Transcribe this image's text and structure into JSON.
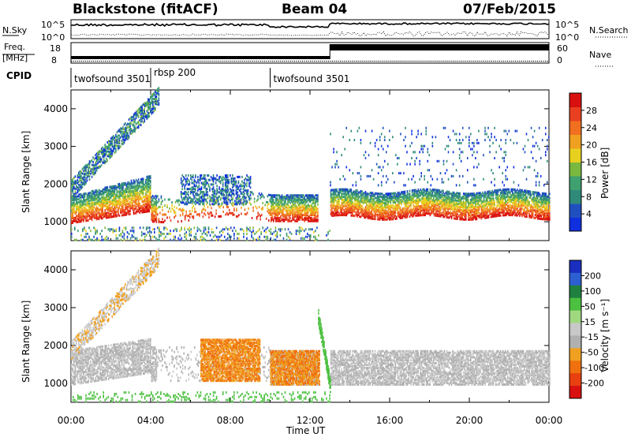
{
  "header": {
    "station": "Blackstone (fitACF)",
    "beam": "Beam 04",
    "date": "07/Feb/2015"
  },
  "labels": {
    "nsky": "N.Sky",
    "nsearch": "N.Search",
    "freq_top": "Freq.",
    "freq_bottom": "[MHz]",
    "nave": "Nave",
    "cpid": "CPID",
    "nsky_ticks": [
      "10^5",
      "10^0"
    ],
    "nsearch_ticks": [
      "10^5",
      "10^0"
    ],
    "freq_ticks": [
      "18",
      "8"
    ],
    "nave_ticks": [
      "60",
      "0"
    ]
  },
  "cpid": [
    {
      "name": "twofsound 3501",
      "start": 0.0
    },
    {
      "name": "rbsp 200",
      "start": 4.0
    },
    {
      "name": "twofsound 3501",
      "start": 10.0
    }
  ],
  "colors": {
    "power_scale": [
      "#1030e0",
      "#2050c0",
      "#2f8a7a",
      "#3fa070",
      "#7ab840",
      "#e8d020",
      "#f0a020",
      "#f07020",
      "#e84020",
      "#d81010"
    ],
    "velocity_scale": [
      "#1a2fc0",
      "#2c5fd0",
      "#1f8040",
      "#4cc040",
      "#a0d880",
      "#c8c8c8",
      "#b0b0b0",
      "#f0a020",
      "#f07010",
      "#e84010",
      "#d81010"
    ]
  },
  "chart_data": [
    {
      "type": "heatmap",
      "name": "power",
      "xlabel": "",
      "ylabel": "Slant Range [km]",
      "xlim": [
        0,
        24
      ],
      "ylim": [
        500,
        4500
      ],
      "yticks": [
        1000,
        2000,
        3000,
        4000
      ],
      "colorbar": {
        "label": "Power [dB]",
        "range": [
          0,
          32
        ],
        "ticks": [
          4,
          8,
          12,
          16,
          20,
          24,
          28
        ]
      },
      "features": [
        {
          "description": "main scatter band",
          "time_range": [
            0,
            24
          ],
          "range_km": [
            1000,
            1800
          ],
          "power_db": [
            14,
            30
          ]
        },
        {
          "description": "rising band",
          "time_range": [
            0,
            4.3
          ],
          "range_km": [
            1900,
            4300
          ],
          "power_db": [
            4,
            16
          ]
        },
        {
          "description": "mid-day patch",
          "time_range": [
            5.5,
            9
          ],
          "range_km": [
            1500,
            2300
          ],
          "power_db": [
            4,
            16
          ]
        }
      ]
    },
    {
      "type": "heatmap",
      "name": "velocity",
      "xlabel": "Time UT",
      "ylabel": "Slant Range [km]",
      "xlim": [
        0,
        24
      ],
      "ylim": [
        500,
        4500
      ],
      "yticks": [
        1000,
        2000,
        3000,
        4000
      ],
      "xticks": [
        "00:00",
        "04:00",
        "08:00",
        "12:00",
        "16:00",
        "20:00",
        "00:00"
      ],
      "colorbar": {
        "label": "Velocity [m s⁻¹]",
        "ticks": [
          200,
          100,
          50,
          15,
          -15,
          -50,
          -100,
          -200
        ]
      },
      "features": [
        {
          "description": "ground scatter band",
          "time_range": [
            0,
            24
          ],
          "range_km": [
            1000,
            2000
          ],
          "velocity": [
            -15,
            15
          ]
        },
        {
          "description": "negative velocity patch",
          "time_range": [
            6.5,
            9.5
          ],
          "range_km": [
            1100,
            2200
          ],
          "velocity": [
            -100,
            -50
          ]
        },
        {
          "description": "negative velocity patch",
          "time_range": [
            10,
            12.5
          ],
          "range_km": [
            1000,
            1900
          ],
          "velocity": [
            -100,
            -50
          ]
        }
      ]
    }
  ]
}
